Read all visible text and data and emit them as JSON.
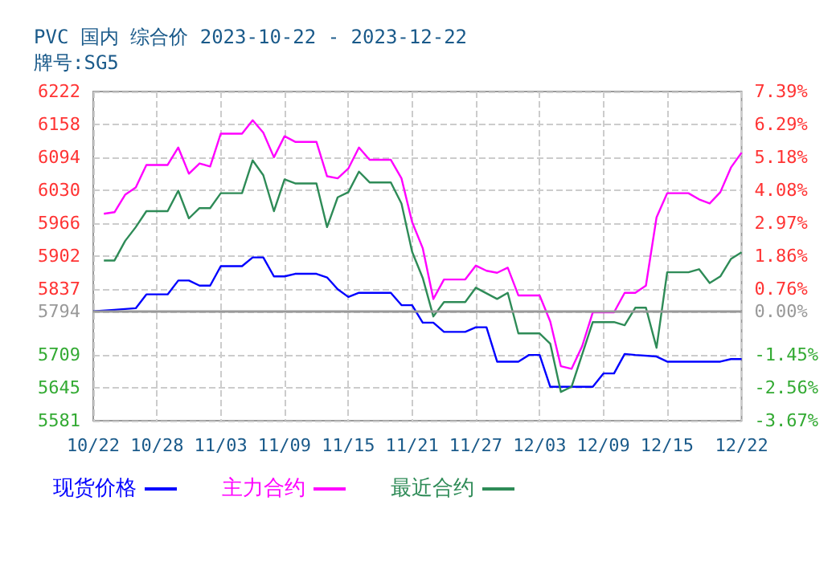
{
  "chart_data": {
    "type": "line",
    "title": "PVC 国内 综合价 2023-10-22 - 2023-12-22",
    "subtitle": "牌号:SG5",
    "xlim": [
      "--10-22",
      "--12-22"
    ],
    "xticks": [
      {
        "value": "--10-22",
        "label": "10/22"
      },
      {
        "value": "--10-28",
        "label": "10/28"
      },
      {
        "value": "--11-03",
        "label": "11/03"
      },
      {
        "value": "--11-09",
        "label": "11/09"
      },
      {
        "value": "--11-15",
        "label": "11/15"
      },
      {
        "value": "--11-21",
        "label": "11/21"
      },
      {
        "value": "--11-27",
        "label": "11/27"
      },
      {
        "value": "--12-03",
        "label": "12/03"
      },
      {
        "value": "--12-09",
        "label": "12/09"
      },
      {
        "value": "--12-15",
        "label": "12/15"
      },
      {
        "value": "--12-22",
        "label": "12/22"
      }
    ],
    "ylim": [
      5581,
      6222
    ],
    "yticks": [
      5581,
      5645,
      5709,
      5794,
      5837,
      5902,
      5966,
      6030,
      6094,
      6158,
      6222
    ],
    "y2lim": [
      -3.67,
      7.39
    ],
    "y2ticks": [
      {
        "value": -3.67,
        "label": "-3.67%"
      },
      {
        "value": -2.56,
        "label": "-2.56%"
      },
      {
        "value": -1.45,
        "label": "-1.45%"
      },
      {
        "value": 0,
        "label": "0.00%"
      },
      {
        "value": 0.76,
        "label": "0.76%"
      },
      {
        "value": 1.86,
        "label": "1.86%"
      },
      {
        "value": 2.97,
        "label": "2.97%"
      },
      {
        "value": 4.08,
        "label": "4.08%"
      },
      {
        "value": 5.18,
        "label": "5.18%"
      },
      {
        "value": 6.29,
        "label": "6.29%"
      },
      {
        "value": 7.39,
        "label": "7.39%"
      }
    ],
    "grid": true,
    "legend": "bottom",
    "marker": "none",
    "line_style": "solid",
    "ref_lines": [
      {
        "axis": "y",
        "value": 5794,
        "color": "#999999"
      }
    ],
    "series": [
      {
        "name": "现货价格",
        "color": "#0000ff",
        "x": [
          "--10-22",
          "--10-24",
          "--10-26",
          "--10-27",
          "--10-29",
          "--10-30",
          "--10-31",
          "--11-01",
          "--11-02",
          "--11-03",
          "--11-05",
          "--11-06",
          "--11-07",
          "--11-08",
          "--11-09",
          "--11-10",
          "--11-12",
          "--11-13",
          "--11-14",
          "--11-15",
          "--11-16",
          "--11-19",
          "--11-20",
          "--11-21",
          "--11-22",
          "--11-23",
          "--11-24",
          "--11-26",
          "--11-27",
          "--11-28",
          "--11-29",
          "--12-01",
          "--12-02",
          "--12-03",
          "--12-04",
          "--12-08",
          "--12-09",
          "--12-10",
          "--12-11",
          "--12-12",
          "--12-14",
          "--12-15",
          "--12-20",
          "--12-21",
          "--12-22"
        ],
        "values": [
          5794,
          5797,
          5800,
          5827,
          5827,
          5854,
          5854,
          5844,
          5844,
          5882,
          5882,
          5899,
          5899,
          5862,
          5862,
          5867,
          5867,
          5860,
          5837,
          5822,
          5830,
          5830,
          5806,
          5806,
          5772,
          5772,
          5754,
          5754,
          5763,
          5763,
          5696,
          5696,
          5709,
          5709,
          5647,
          5647,
          5673,
          5673,
          5711,
          5709,
          5706,
          5696,
          5696,
          5701,
          5701
        ]
      },
      {
        "name": "主力合约",
        "color": "#ff00ff",
        "x": [
          "--10-23",
          "--10-24",
          "--10-25",
          "--10-26",
          "--10-27",
          "--10-29",
          "--10-30",
          "--10-31",
          "--11-01",
          "--11-02",
          "--11-03",
          "--11-05",
          "--11-06",
          "--11-07",
          "--11-08",
          "--11-09",
          "--11-10",
          "--11-12",
          "--11-13",
          "--11-14",
          "--11-15",
          "--11-16",
          "--11-17",
          "--11-19",
          "--11-20",
          "--11-21",
          "--11-22",
          "--11-23",
          "--11-24",
          "--11-26",
          "--11-27",
          "--11-28",
          "--11-29",
          "--11-30",
          "--12-01",
          "--12-03",
          "--12-04",
          "--12-05",
          "--12-06",
          "--12-07",
          "--12-08",
          "--12-10",
          "--12-11",
          "--12-12",
          "--12-13",
          "--12-14",
          "--12-15",
          "--12-17",
          "--12-18",
          "--12-19",
          "--12-20",
          "--12-21",
          "--12-22"
        ],
        "values": [
          5984,
          5987,
          6021,
          6035,
          6079,
          6079,
          6113,
          6062,
          6082,
          6076,
          6140,
          6140,
          6166,
          6142,
          6094,
          6135,
          6124,
          6124,
          6057,
          6053,
          6072,
          6113,
          6089,
          6089,
          6053,
          5968,
          5917,
          5818,
          5856,
          5856,
          5883,
          5873,
          5869,
          5879,
          5825,
          5825,
          5774,
          5687,
          5682,
          5726,
          5792,
          5792,
          5830,
          5830,
          5844,
          5977,
          6024,
          6024,
          6012,
          6004,
          6026,
          6074,
          6103
        ]
      },
      {
        "name": "最近合约",
        "color": "#2e8b57",
        "x": [
          "--10-23",
          "--10-24",
          "--10-25",
          "--10-26",
          "--10-27",
          "--10-29",
          "--10-30",
          "--10-31",
          "--11-01",
          "--11-02",
          "--11-03",
          "--11-05",
          "--11-06",
          "--11-07",
          "--11-08",
          "--11-09",
          "--11-10",
          "--11-12",
          "--11-13",
          "--11-14",
          "--11-15",
          "--11-16",
          "--11-17",
          "--11-19",
          "--11-20",
          "--11-21",
          "--11-22",
          "--11-23",
          "--11-24",
          "--11-26",
          "--11-27",
          "--11-29",
          "--11-30",
          "--12-01",
          "--12-03",
          "--12-04",
          "--12-05",
          "--12-06",
          "--12-08",
          "--12-10",
          "--12-11",
          "--12-12",
          "--12-13",
          "--12-14",
          "--12-15",
          "--12-17",
          "--12-18",
          "--12-19",
          "--12-20",
          "--12-21",
          "--12-22"
        ],
        "values": [
          5893,
          5893,
          5931,
          5958,
          5989,
          5989,
          6029,
          5975,
          5995,
          5995,
          6024,
          6024,
          6088,
          6059,
          5989,
          6051,
          6043,
          6043,
          5958,
          6016,
          6026,
          6066,
          6045,
          6045,
          6004,
          5910,
          5859,
          5784,
          5812,
          5812,
          5840,
          5818,
          5830,
          5751,
          5751,
          5731,
          5637,
          5647,
          5773,
          5773,
          5767,
          5801,
          5801,
          5723,
          5870,
          5870,
          5876,
          5849,
          5862,
          5896,
          5909
        ]
      }
    ]
  }
}
